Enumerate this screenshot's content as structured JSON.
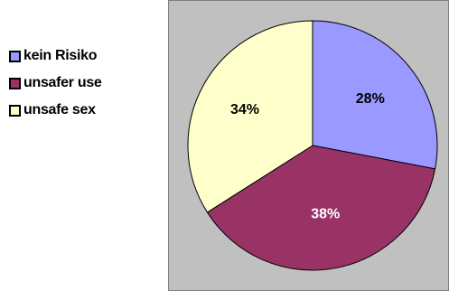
{
  "chart_data": {
    "type": "pie",
    "title": "",
    "categories": [
      "kein Risiko",
      "unsafer use",
      "unsafe sex"
    ],
    "values": [
      28,
      38,
      34
    ],
    "data_labels": [
      "28%",
      "38%",
      "34%"
    ],
    "colors": [
      "#9999ff",
      "#993366",
      "#ffffcc"
    ],
    "plot_background": "#c0c0c0",
    "legend": {
      "placement": "left",
      "items": [
        {
          "label": "kein Risiko",
          "color": "#9999ff"
        },
        {
          "label": "unsafer use",
          "color": "#993366"
        },
        {
          "label": "unsafe sex",
          "color": "#ffffcc"
        }
      ]
    }
  }
}
